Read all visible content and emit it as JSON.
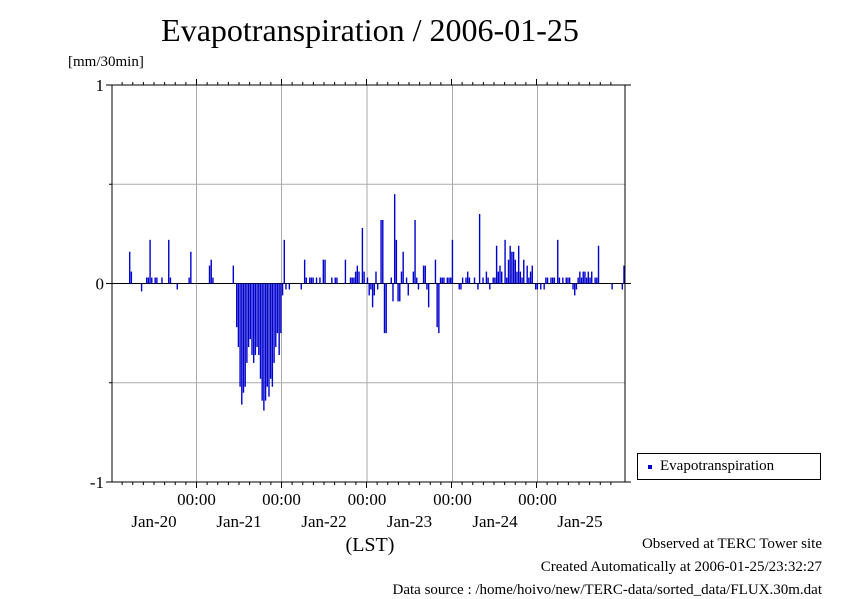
{
  "chart_data": {
    "type": "bar",
    "title": "Evapotranspiration / 2006-01-25",
    "ylabel": "[mm/30min]",
    "xlabel": "(LST)",
    "ylim": [
      -1,
      1
    ],
    "yticks": [
      "1",
      "0",
      "-1"
    ],
    "xtick_times": [
      "00:00",
      "00:00",
      "00:00",
      "00:00",
      "00:00"
    ],
    "xtick_days": [
      "Jan-20",
      "Jan-21",
      "Jan-22",
      "Jan-23",
      "Jan-24",
      "Jan-25"
    ],
    "grid": true,
    "legend_position": "bottom-right",
    "series": [
      {
        "name": "Evapotranspiration",
        "color": "#0000cc",
        "values": [
          0,
          0,
          0,
          0,
          0,
          0,
          0,
          0,
          0,
          0,
          0.16,
          0.06,
          0,
          0,
          0,
          0,
          0,
          -0.04,
          0,
          0,
          0.03,
          0.03,
          0.22,
          0.03,
          0,
          0.03,
          0.03,
          0,
          0,
          0.03,
          0,
          0,
          0,
          0.22,
          0.03,
          0,
          0,
          0,
          -0.03,
          0,
          0,
          0,
          0,
          0,
          0,
          0.03,
          0.16,
          0,
          0,
          0,
          0,
          0,
          0,
          0,
          0,
          0,
          0,
          0.09,
          0.12,
          0.03,
          0,
          0,
          0,
          0,
          0,
          0,
          0,
          0,
          0,
          0,
          0,
          0.09,
          0,
          -0.22,
          -0.32,
          -0.52,
          -0.61,
          -0.55,
          -0.52,
          -0.4,
          -0.32,
          -0.28,
          -0.36,
          -0.4,
          -0.36,
          -0.32,
          -0.36,
          -0.48,
          -0.59,
          -0.64,
          -0.59,
          -0.52,
          -0.57,
          -0.48,
          -0.52,
          -0.4,
          -0.32,
          -0.25,
          -0.36,
          -0.25,
          -0.06,
          0.22,
          -0.03,
          0,
          -0.03,
          0,
          0,
          0,
          0,
          0,
          0,
          -0.03,
          0,
          0.12,
          0.03,
          0,
          0.03,
          0.03,
          0.03,
          0,
          0.03,
          0,
          0.03,
          0,
          0.12,
          0.12,
          0,
          0,
          0,
          0.03,
          0,
          0.03,
          0.03,
          0,
          0,
          0,
          0,
          0.12,
          0,
          0,
          0.03,
          0.03,
          0.03,
          0.06,
          0.09,
          0.06,
          0,
          0.28,
          0.06,
          0,
          0.03,
          -0.06,
          -0.03,
          -0.12,
          -0.06,
          0.06,
          -0.03,
          0,
          0.32,
          0.32,
          -0.25,
          -0.25,
          0,
          0,
          0.03,
          -0.09,
          0.45,
          0.22,
          -0.09,
          -0.09,
          0.06,
          0.16,
          0,
          0.03,
          -0.06,
          0,
          0,
          0.06,
          0.32,
          0.03,
          -0.03,
          0,
          0,
          0.09,
          0.09,
          -0.03,
          -0.12,
          0,
          0,
          0,
          0.12,
          -0.22,
          -0.25,
          0.03,
          0.03,
          0.03,
          0,
          0.03,
          0.03,
          0.03,
          0.22,
          0,
          0,
          0,
          -0.03,
          -0.03,
          0.03,
          0,
          0.03,
          0.06,
          0.03,
          0,
          0,
          0.03,
          0,
          -0.03,
          0.35,
          0,
          0.03,
          0,
          0.06,
          0.03,
          -0.03,
          0,
          0.03,
          0.03,
          0.19,
          0.06,
          0.09,
          0.06,
          0,
          0.22,
          0.03,
          0.12,
          0.19,
          0.16,
          0.16,
          0.12,
          0.06,
          0.19,
          0.06,
          0.03,
          0.12,
          0,
          0.09,
          0.03,
          0.06,
          0.09,
          0,
          -0.03,
          -0.03,
          0,
          -0.03,
          0,
          -0.03,
          0.03,
          0.03,
          0,
          0.03,
          0.03,
          0.03,
          0,
          0.22,
          0.03,
          0,
          0.03,
          0,
          0.03,
          0.03,
          0.03,
          0,
          -0.03,
          -0.06,
          -0.03,
          0.03,
          0.06,
          0.03,
          0.06,
          0.06,
          0.03,
          0.06,
          0.03,
          0.06,
          0,
          0.03,
          0.03,
          0.19,
          0,
          0,
          0,
          0,
          0,
          0,
          0,
          -0.03,
          0,
          0,
          0,
          0,
          0,
          -0.03,
          0.09
        ]
      }
    ]
  },
  "legend": {
    "label": "Evapotranspiration"
  },
  "footer": {
    "line1": "Observed at TERC Tower site",
    "line2": "Created Automatically at 2006-01-25/23:32:27",
    "line3": "Data source : /home/hoivo/new/TERC-data/sorted_data/FLUX.30m.dat"
  }
}
